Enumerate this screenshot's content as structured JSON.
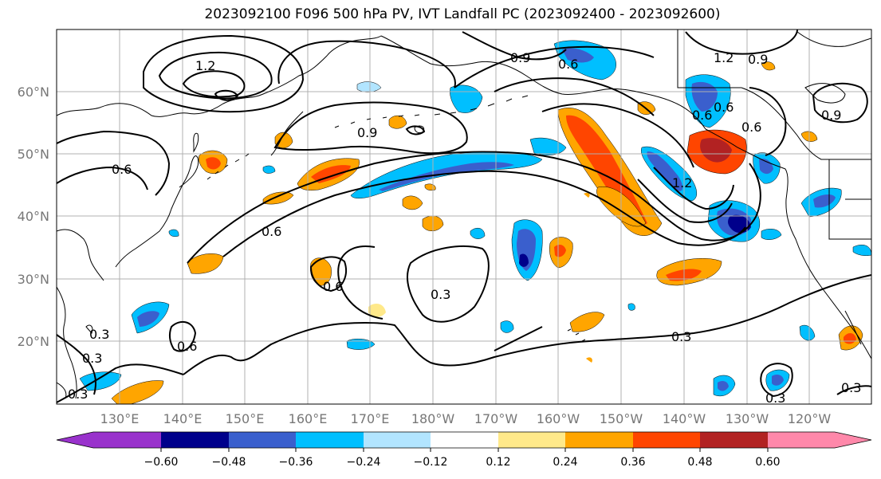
{
  "title": "2023092100 F096 500 hPa PV, IVT Landfall PC (2023092400 - 2023092600)",
  "lat_ticks": [
    "60°N",
    "50°N",
    "40°N",
    "30°N",
    "20°N"
  ],
  "lon_ticks": [
    "130°E",
    "140°E",
    "150°E",
    "160°E",
    "170°E",
    "180°W",
    "170°W",
    "160°W",
    "150°W",
    "140°W",
    "130°W",
    "120°W"
  ],
  "colorbar": {
    "labels": [
      "−0.60",
      "−0.48",
      "−0.36",
      "−0.24",
      "−0.12",
      "0.12",
      "0.24",
      "0.36",
      "0.48",
      "0.60"
    ],
    "colors": [
      "#9932cc",
      "#00008b",
      "#3a5fcd",
      "#00bfff",
      "#b2e5ff",
      "#ffffff",
      "#ffe98a",
      "#ffa500",
      "#ff4500",
      "#b22222",
      "#ff88aa"
    ]
  },
  "contour_labels": [
    "1.2",
    "0.6",
    "0.9",
    "0.6",
    "0.9",
    "0.6",
    "0.6",
    "0.6",
    "0.3",
    "0.3",
    "0.3",
    "0.6",
    "0.3",
    "0.3",
    "1.2",
    "0.9",
    "0.9",
    "0.6",
    "1.2",
    "0.3",
    "0.3",
    "0.6"
  ],
  "colors": {
    "coast": "#000000",
    "grid": "#b0b0b0",
    "contour": "#000000"
  }
}
